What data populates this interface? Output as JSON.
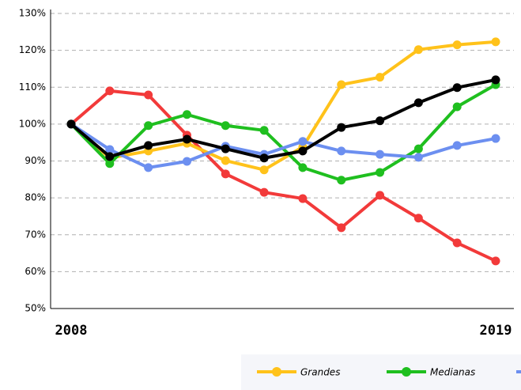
{
  "chart_data": {
    "type": "line",
    "categories": [
      "2008",
      null,
      null,
      null,
      null,
      null,
      null,
      null,
      null,
      null,
      null,
      "2019"
    ],
    "series": [
      {
        "color": "#f23a3a",
        "values": [
          100,
          109,
          107.9,
          97,
          86.5,
          81.5,
          79.8,
          71.9,
          80.7,
          74.5,
          67.8,
          62.9
        ]
      },
      {
        "name": "Grandes",
        "color": "#ffc21a",
        "values": [
          100,
          90.8,
          92.7,
          94.8,
          90.1,
          87.6,
          93.8,
          110.7,
          112.7,
          120.2,
          121.5,
          122.3
        ]
      },
      {
        "name": "Medianas",
        "color": "#1fbf1f",
        "values": [
          100,
          89.3,
          99.6,
          102.6,
          99.6,
          98.3,
          88.2,
          84.8,
          86.9,
          93.3,
          104.7,
          110.7
        ]
      },
      {
        "color": "#6c8ff0",
        "values": [
          100,
          93.1,
          88.2,
          89.9,
          94,
          91.8,
          95.3,
          92.7,
          91.8,
          91,
          94.2,
          96.1
        ]
      },
      {
        "color": "#000000",
        "values": [
          100,
          91.2,
          94.2,
          95.9,
          93.3,
          90.8,
          92.7,
          99.1,
          100.9,
          105.8,
          109.9,
          112
        ]
      }
    ],
    "ylim": [
      50,
      130
    ],
    "yticks": [
      {
        "value": 50,
        "label": "50%"
      },
      {
        "value": 60,
        "label": "60%"
      },
      {
        "value": 70,
        "label": "70%"
      },
      {
        "value": 80,
        "label": "80%"
      },
      {
        "value": 90,
        "label": "90%"
      },
      {
        "value": 100,
        "label": "100%"
      },
      {
        "value": 110,
        "label": "110%"
      },
      {
        "value": 120,
        "label": "120%"
      },
      {
        "value": 130,
        "label": "130%"
      }
    ],
    "grid": true
  }
}
